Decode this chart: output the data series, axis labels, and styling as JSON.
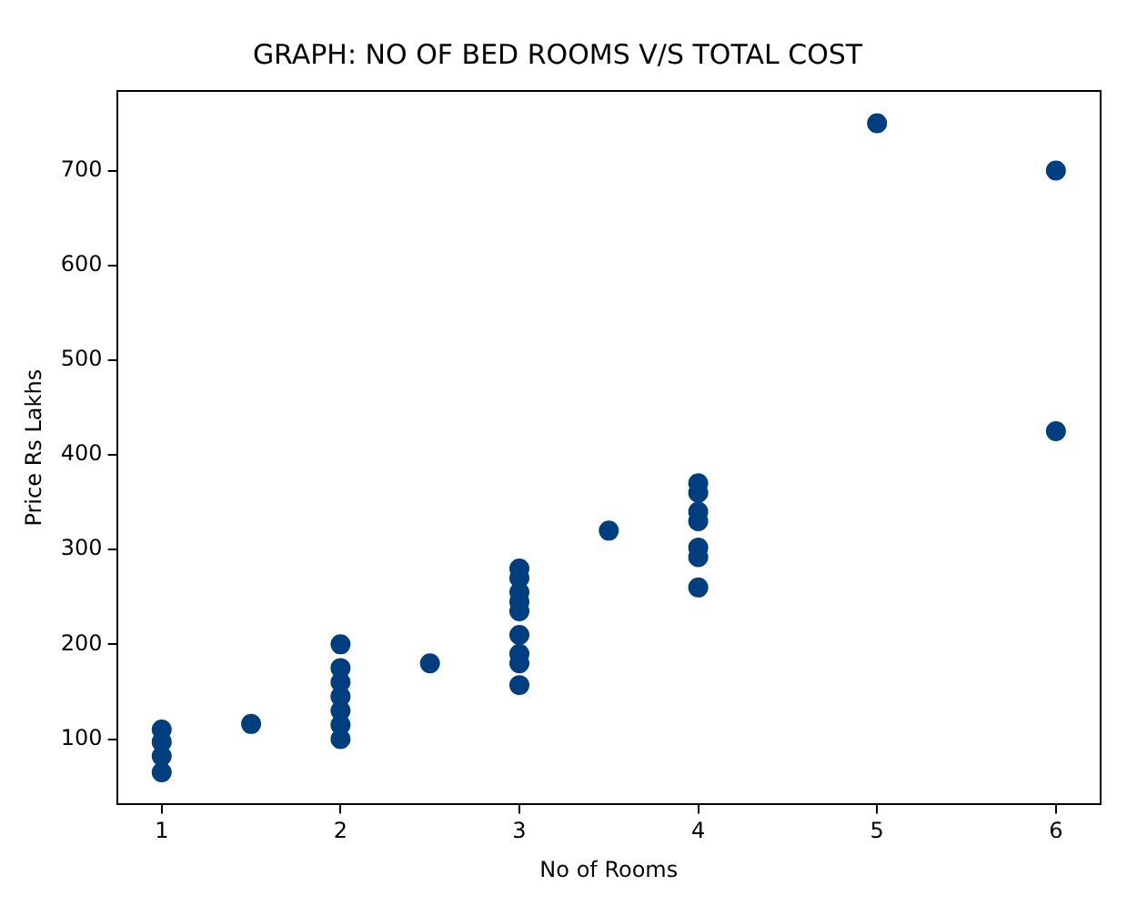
{
  "chart_data": {
    "type": "scatter",
    "title": "GRAPH: NO OF BED ROOMS V/S TOTAL COST",
    "xlabel": "No of Rooms",
    "ylabel": "Price Rs Lakhs",
    "x": [
      1,
      1,
      1,
      1,
      1.5,
      2,
      2,
      2,
      2,
      2,
      2,
      2,
      2.5,
      3,
      3,
      3,
      3,
      3,
      3,
      3,
      3,
      3,
      3.5,
      4,
      4,
      4,
      4,
      4,
      4,
      4,
      5,
      6,
      6
    ],
    "values": [
      65,
      82,
      97,
      110,
      116,
      100,
      115,
      130,
      145,
      160,
      175,
      200,
      180,
      157,
      180,
      190,
      210,
      235,
      245,
      255,
      270,
      280,
      320,
      260,
      292,
      302,
      330,
      340,
      360,
      370,
      750,
      700,
      425
    ],
    "color": "#003f7f",
    "marker": "circle",
    "xlim": [
      0.75,
      6.25
    ],
    "ylim": [
      31,
      784
    ],
    "xticks": [
      1,
      2,
      3,
      4,
      5,
      6
    ],
    "yticks": [
      100,
      200,
      300,
      400,
      500,
      600,
      700
    ],
    "grid": false,
    "legend": false
  }
}
